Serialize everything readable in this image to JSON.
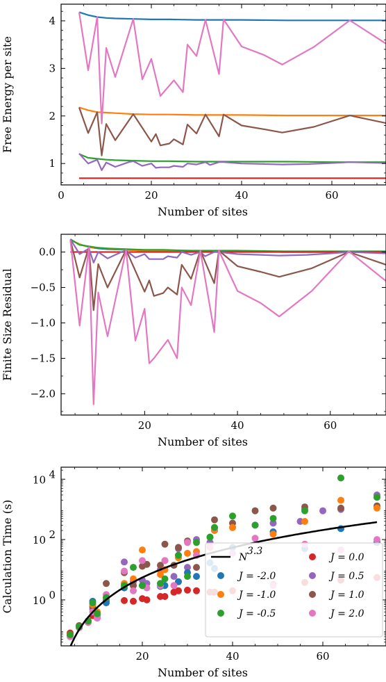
{
  "chart_data": [
    {
      "type": "line",
      "xlabel": "Number of sites",
      "ylabel": "Free Energy per site",
      "xlim": [
        0,
        72
      ],
      "ylim": [
        0.55,
        4.35
      ],
      "xticks": [
        0,
        20,
        40,
        60
      ],
      "yticks": [
        1,
        2,
        3,
        4
      ],
      "series": [
        {
          "color": "#1f77b4",
          "x": [
            4,
            6,
            8,
            10,
            12,
            16,
            20,
            24,
            30,
            40,
            50,
            60,
            72
          ],
          "y": [
            4.18,
            4.12,
            4.08,
            4.06,
            4.05,
            4.04,
            4.03,
            4.03,
            4.02,
            4.02,
            4.01,
            4.01,
            4.01
          ]
        },
        {
          "color": "#ff7f0e",
          "x": [
            4,
            6,
            8,
            10,
            12,
            16,
            20,
            24,
            30,
            40,
            50,
            60,
            72
          ],
          "y": [
            2.18,
            2.12,
            2.08,
            2.07,
            2.06,
            2.04,
            2.03,
            2.03,
            2.02,
            2.02,
            2.01,
            2.01,
            2.01
          ]
        },
        {
          "color": "#2ca02c",
          "x": [
            4,
            6,
            8,
            10,
            12,
            16,
            20,
            24,
            30,
            40,
            50,
            60,
            72
          ],
          "y": [
            1.2,
            1.12,
            1.1,
            1.08,
            1.07,
            1.06,
            1.05,
            1.05,
            1.04,
            1.04,
            1.04,
            1.03,
            1.03
          ]
        },
        {
          "color": "#d62728",
          "x": [
            4,
            72
          ],
          "y": [
            0.69,
            0.69
          ]
        },
        {
          "color": "#9467bd",
          "x": [
            4,
            6,
            8,
            9,
            10,
            12,
            15,
            16,
            18,
            20,
            21,
            22,
            24,
            25,
            27,
            28,
            30,
            32,
            33,
            35,
            36,
            40,
            45,
            49,
            55,
            60,
            64,
            72
          ],
          "y": [
            1.21,
            1.0,
            1.08,
            0.86,
            1.02,
            0.93,
            1.03,
            1.05,
            0.95,
            1.0,
            0.91,
            0.92,
            0.92,
            0.95,
            0.93,
            1.0,
            0.98,
            1.03,
            0.97,
            1.03,
            1.03,
            1.0,
            0.99,
            0.98,
            0.99,
            1.01,
            1.03,
            1.01
          ]
        },
        {
          "color": "#8c564b",
          "x": [
            4,
            6,
            8,
            9,
            10,
            12,
            16,
            20,
            21,
            22,
            24,
            25,
            27,
            28,
            30,
            32,
            35,
            36,
            40,
            45,
            49,
            56,
            64,
            72
          ],
          "y": [
            2.18,
            1.64,
            2.08,
            1.17,
            1.83,
            1.49,
            2.04,
            1.46,
            1.62,
            1.38,
            1.42,
            1.51,
            1.4,
            1.82,
            1.63,
            2.03,
            1.57,
            2.03,
            1.8,
            1.72,
            1.65,
            1.77,
            2.01,
            1.85
          ]
        },
        {
          "color": "#e377c2",
          "x": [
            4,
            6,
            8,
            9,
            10,
            12,
            16,
            18,
            20,
            22,
            25,
            27,
            28,
            30,
            32,
            35,
            36,
            40,
            45,
            49,
            56,
            64,
            72
          ],
          "y": [
            4.18,
            2.96,
            4.08,
            1.84,
            3.43,
            2.82,
            4.04,
            2.77,
            3.2,
            2.42,
            2.75,
            2.5,
            3.5,
            3.26,
            4.02,
            2.88,
            4.03,
            3.46,
            3.28,
            3.08,
            3.45,
            4.01,
            3.52
          ]
        }
      ]
    },
    {
      "type": "line",
      "xlabel": "Number of sites",
      "ylabel": "Finite Size Residual",
      "xlim": [
        2,
        72
      ],
      "ylim": [
        -2.3,
        0.25
      ],
      "xticks": [
        20,
        40,
        60
      ],
      "yticks": [
        0.0,
        -0.5,
        -1.0,
        -1.5,
        -2.0
      ],
      "ytick_labels": [
        "0.0",
        "−0.5",
        "−1.0",
        "−1.5",
        "−2.0"
      ],
      "series": [
        {
          "color": "#1f77b4",
          "x": [
            4,
            6,
            8,
            10,
            12,
            16,
            20,
            24,
            30,
            40,
            50,
            60,
            72
          ],
          "y": [
            0.17,
            0.11,
            0.07,
            0.05,
            0.04,
            0.03,
            0.02,
            0.02,
            0.01,
            0.01,
            0.0,
            0.0,
            0.0
          ]
        },
        {
          "color": "#ff7f0e",
          "x": [
            4,
            6,
            8,
            10,
            12,
            16,
            20,
            24,
            30,
            40,
            50,
            60,
            72
          ],
          "y": [
            0.17,
            0.11,
            0.07,
            0.06,
            0.05,
            0.03,
            0.02,
            0.02,
            0.01,
            0.01,
            0.0,
            0.0,
            0.0
          ]
        },
        {
          "color": "#2ca02c",
          "x": [
            4,
            6,
            8,
            10,
            12,
            16,
            20,
            24,
            30,
            40,
            50,
            60,
            72
          ],
          "y": [
            0.18,
            0.1,
            0.08,
            0.06,
            0.05,
            0.04,
            0.03,
            0.03,
            0.02,
            0.02,
            0.01,
            0.01,
            0.01
          ]
        },
        {
          "color": "#d62728",
          "x": [
            4,
            72
          ],
          "y": [
            0.0,
            0.0
          ]
        },
        {
          "color": "#9467bd",
          "x": [
            4,
            6,
            8,
            9,
            10,
            12,
            15,
            16,
            18,
            20,
            21,
            22,
            24,
            25,
            27,
            28,
            30,
            32,
            33,
            35,
            36,
            40,
            45,
            49,
            55,
            60,
            64,
            72
          ],
          "y": [
            0.18,
            -0.03,
            0.05,
            -0.15,
            0.0,
            -0.09,
            0.0,
            0.02,
            -0.08,
            -0.03,
            -0.1,
            -0.1,
            -0.1,
            -0.06,
            -0.08,
            0.0,
            -0.04,
            0.0,
            -0.06,
            0.0,
            0.0,
            -0.03,
            -0.04,
            -0.05,
            -0.04,
            -0.02,
            0.0,
            -0.02
          ]
        },
        {
          "color": "#8c564b",
          "x": [
            4,
            6,
            8,
            9,
            10,
            12,
            16,
            20,
            21,
            22,
            24,
            25,
            27,
            28,
            30,
            32,
            35,
            36,
            40,
            45,
            49,
            56,
            64,
            72
          ],
          "y": [
            0.17,
            -0.36,
            0.07,
            -0.82,
            -0.17,
            -0.5,
            0.03,
            -0.56,
            -0.4,
            -0.62,
            -0.58,
            -0.5,
            -0.6,
            -0.18,
            -0.38,
            0.02,
            -0.44,
            0.02,
            -0.2,
            -0.28,
            -0.35,
            -0.23,
            0.0,
            -0.18
          ]
        },
        {
          "color": "#e377c2",
          "x": [
            4,
            6,
            8,
            9,
            10,
            12,
            16,
            18,
            20,
            21,
            22,
            25,
            27,
            28,
            30,
            32,
            35,
            36,
            40,
            45,
            49,
            56,
            64,
            72
          ],
          "y": [
            0.17,
            -1.04,
            0.07,
            -2.15,
            -0.57,
            -1.19,
            0.03,
            -1.25,
            -0.8,
            -1.57,
            -1.5,
            -1.24,
            -1.5,
            -0.5,
            -0.75,
            0.02,
            -1.13,
            0.02,
            -0.55,
            -0.72,
            -0.91,
            -0.55,
            0.01,
            -0.41
          ]
        }
      ]
    },
    {
      "type": "scatter",
      "xlabel": "Number of sites",
      "ylabel": "Calculation Time (s)",
      "yscale": "log",
      "xlim": [
        2,
        74
      ],
      "ylim": [
        0.03,
        25000
      ],
      "xticks": [
        20,
        40,
        60
      ],
      "yticks": [
        1,
        100,
        10000
      ],
      "ytick_labels": [
        {
          "base": "10",
          "exp": "0"
        },
        {
          "base": "10",
          "exp": "2"
        },
        {
          "base": "10",
          "exp": "4"
        }
      ],
      "fit": {
        "label_base": "N",
        "label_exp": "3.3",
        "color": "#000000",
        "x_start": 4,
        "x_end": 72,
        "y_at_x4": 0.0272,
        "exponent": 3.3
      },
      "legend": {
        "placement": "lower-right"
      },
      "series": [
        {
          "name": "J = 0.0",
          "color": "#d62728",
          "x": [
            4,
            6,
            8,
            9,
            10,
            12,
            16,
            18,
            20,
            21,
            24,
            25,
            27,
            28,
            30,
            32,
            35,
            36,
            40,
            49,
            56,
            64,
            72
          ],
          "y": [
            0.08,
            0.12,
            0.18,
            0.3,
            0.4,
            0.9,
            0.95,
            0.9,
            1.1,
            1.0,
            1.3,
            1.3,
            1.8,
            2.0,
            2.1,
            2.0,
            1.8,
            1.8,
            2.0,
            3.2,
            3.8,
            4.5,
            5.5
          ]
        },
        {
          "name": "J = 0.5",
          "color": "#9467bd",
          "x": [
            4,
            6,
            8,
            9,
            10,
            12,
            16,
            18,
            20,
            21,
            24,
            25,
            27,
            28,
            30,
            32,
            35,
            36,
            40,
            45,
            49,
            55,
            56,
            60,
            64,
            72
          ],
          "y": [
            0.07,
            0.14,
            0.2,
            0.5,
            0.3,
            1.0,
            18,
            4,
            4.5,
            3.5,
            10,
            20,
            6,
            50,
            12,
            100,
            80,
            200,
            250,
            300,
            350,
            400,
            1000,
            900,
            1000,
            3000
          ]
        },
        {
          "name": "J = -2.0",
          "color": "#1f77b4",
          "x": [
            4,
            6,
            8,
            9,
            10,
            12,
            16,
            18,
            20,
            24,
            25,
            28,
            30,
            32,
            35,
            36,
            40,
            49,
            56,
            64,
            72
          ],
          "y": [
            0.07,
            0.13,
            0.2,
            0.9,
            0.35,
            0.8,
            2.5,
            3,
            3,
            2.8,
            3,
            4,
            8,
            6,
            17,
            11,
            55,
            180,
            50,
            230,
            80
          ]
        },
        {
          "name": "J = 1.0",
          "color": "#8c564b",
          "x": [
            4,
            6,
            8,
            9,
            10,
            12,
            16,
            18,
            20,
            21,
            24,
            25,
            27,
            28,
            30,
            32,
            35,
            36,
            40,
            45,
            49,
            56,
            64,
            72
          ],
          "y": [
            0.07,
            0.14,
            0.2,
            0.6,
            0.25,
            3.5,
            8,
            3,
            13,
            15,
            14,
            70,
            14,
            55,
            90,
            12,
            120,
            450,
            350,
            900,
            1100,
            1200,
            1100,
            1300
          ]
        },
        {
          "name": "J = -1.0",
          "color": "#ff7f0e",
          "x": [
            4,
            6,
            8,
            9,
            10,
            12,
            16,
            18,
            20,
            24,
            25,
            28,
            30,
            32,
            35,
            36,
            40,
            49,
            56,
            64,
            72
          ],
          "y": [
            0.07,
            0.13,
            0.2,
            0.7,
            0.4,
            1.2,
            3.5,
            5,
            45,
            7,
            10,
            25,
            35,
            40,
            55,
            200,
            250,
            150,
            400,
            2000,
            1100
          ]
        },
        {
          "name": "J = 2.0",
          "color": "#e377c2",
          "x": [
            4,
            6,
            8,
            9,
            10,
            12,
            16,
            18,
            20,
            21,
            24,
            25,
            27,
            28,
            30,
            32,
            35,
            36,
            40,
            45,
            49,
            56,
            64,
            72
          ],
          "y": [
            0.06,
            0.12,
            0.18,
            0.4,
            0.25,
            1.5,
            9,
            2,
            20,
            2.5,
            3,
            20,
            3,
            30,
            80,
            30,
            60,
            240,
            35,
            110,
            3,
            70,
            45,
            100
          ]
        },
        {
          "name": "J = -0.5",
          "color": "#2ca02c",
          "x": [
            4,
            6,
            8,
            9,
            10,
            12,
            16,
            18,
            20,
            24,
            25,
            28,
            30,
            32,
            35,
            36,
            40,
            45,
            49,
            56,
            64,
            72
          ],
          "y": [
            0.07,
            0.13,
            0.2,
            0.8,
            0.35,
            1.2,
            3,
            12,
            3,
            3.5,
            5,
            30,
            6,
            80,
            120,
            250,
            600,
            300,
            500,
            900,
            11000,
            2500
          ]
        }
      ]
    }
  ]
}
